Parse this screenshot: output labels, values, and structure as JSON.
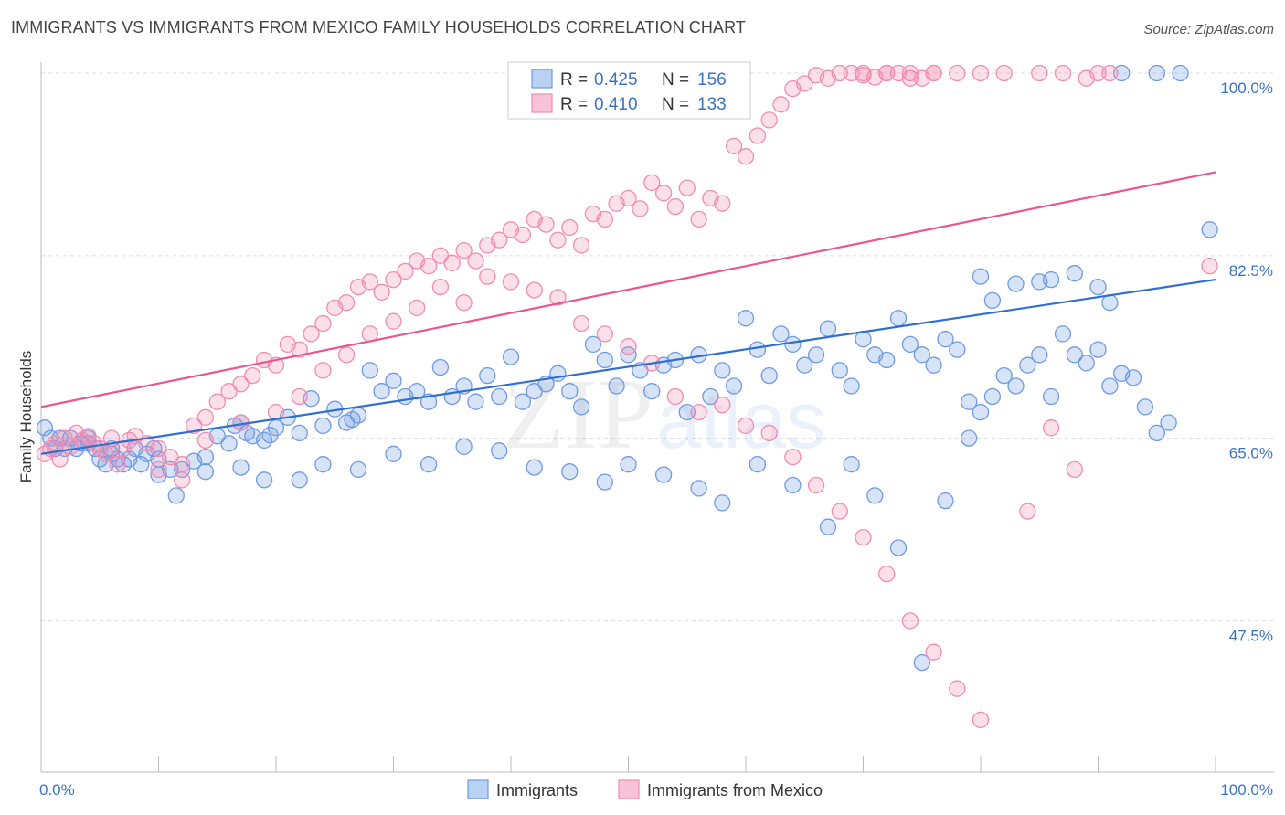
{
  "title": "IMMIGRANTS VS IMMIGRANTS FROM MEXICO FAMILY HOUSEHOLDS CORRELATION CHART",
  "source": "Source: ZipAtlas.com",
  "watermark": {
    "zip": "ZIP",
    "atlas": "atlas"
  },
  "legend": {
    "r_label": "R =",
    "n_label": "N =",
    "rows": [
      {
        "r": "0.425",
        "n": "156"
      },
      {
        "r": "0.410",
        "n": "133"
      }
    ]
  },
  "chart_data": {
    "type": "scatter",
    "xlabel": "",
    "ylabel": "Family Households",
    "xlim": [
      0,
      100
    ],
    "ylim": [
      33,
      100
    ],
    "x_tick_labels": [
      {
        "value": 0,
        "label": "0.0%"
      },
      {
        "value": 100,
        "label": "100.0%"
      }
    ],
    "y_ticks": [
      {
        "value": 47.5,
        "label": "47.5%"
      },
      {
        "value": 65.0,
        "label": "65.0%"
      },
      {
        "value": 82.5,
        "label": "82.5%"
      },
      {
        "value": 100.0,
        "label": "100.0%"
      }
    ],
    "grid": true,
    "legend_placement": "top-center",
    "series": [
      {
        "name": "Immigrants",
        "color": "#6f9be3",
        "line_color": "#2f6fd0",
        "trend": {
          "x": [
            0,
            100
          ],
          "y": [
            63.5,
            80.2
          ]
        },
        "points": [
          [
            0.3,
            66
          ],
          [
            0.8,
            65
          ],
          [
            1.2,
            64
          ],
          [
            1.6,
            65
          ],
          [
            2,
            64
          ],
          [
            2.5,
            65
          ],
          [
            3,
            64
          ],
          [
            3.4,
            64.5
          ],
          [
            4,
            65
          ],
          [
            4.6,
            64
          ],
          [
            5,
            63
          ],
          [
            5.5,
            62.5
          ],
          [
            6,
            64
          ],
          [
            6.5,
            63
          ],
          [
            7,
            62.5
          ],
          [
            7.5,
            63
          ],
          [
            8,
            64
          ],
          [
            8.5,
            62.5
          ],
          [
            9,
            63.5
          ],
          [
            9.6,
            64
          ],
          [
            10,
            63
          ],
          [
            11,
            62
          ],
          [
            12,
            62
          ],
          [
            13,
            62.8
          ],
          [
            14,
            63.2
          ],
          [
            15,
            65.2
          ],
          [
            16,
            64.5
          ],
          [
            16.5,
            66.2
          ],
          [
            17,
            66.5
          ],
          [
            17.5,
            65.5
          ],
          [
            18,
            65.2
          ],
          [
            19,
            64.8
          ],
          [
            19.5,
            65.3
          ],
          [
            20,
            66
          ],
          [
            21,
            67
          ],
          [
            22,
            65.5
          ],
          [
            23,
            68.8
          ],
          [
            24,
            66.2
          ],
          [
            25,
            67.8
          ],
          [
            26,
            66.5
          ],
          [
            26.5,
            66.8
          ],
          [
            27,
            67.2
          ],
          [
            28,
            71.5
          ],
          [
            29,
            69.5
          ],
          [
            30,
            70.5
          ],
          [
            31,
            69
          ],
          [
            32,
            69.5
          ],
          [
            33,
            68.5
          ],
          [
            34,
            71.8
          ],
          [
            35,
            69
          ],
          [
            36,
            70
          ],
          [
            37,
            68.5
          ],
          [
            38,
            71
          ],
          [
            39,
            69
          ],
          [
            40,
            72.8
          ],
          [
            41,
            68.5
          ],
          [
            42,
            69.5
          ],
          [
            43,
            70.2
          ],
          [
            44,
            71.2
          ],
          [
            45,
            69.5
          ],
          [
            46,
            68
          ],
          [
            47,
            74
          ],
          [
            48,
            72.5
          ],
          [
            49,
            70
          ],
          [
            50,
            73
          ],
          [
            51,
            71.5
          ],
          [
            52,
            69.5
          ],
          [
            53,
            72
          ],
          [
            54,
            72.5
          ],
          [
            55,
            67.5
          ],
          [
            56,
            73
          ],
          [
            57,
            69
          ],
          [
            58,
            71.5
          ],
          [
            59,
            70
          ],
          [
            60,
            76.5
          ],
          [
            61,
            73.5
          ],
          [
            62,
            71
          ],
          [
            63,
            75
          ],
          [
            64,
            74
          ],
          [
            65,
            72
          ],
          [
            66,
            73
          ],
          [
            67,
            75.5
          ],
          [
            68,
            71.5
          ],
          [
            69,
            70
          ],
          [
            70,
            74.5
          ],
          [
            71,
            73
          ],
          [
            72,
            72.5
          ],
          [
            73,
            76.5
          ],
          [
            74,
            74
          ],
          [
            75,
            73
          ],
          [
            76,
            72
          ],
          [
            77,
            74.5
          ],
          [
            78,
            73.5
          ],
          [
            79,
            68.5
          ],
          [
            80,
            67.5
          ],
          [
            81,
            69
          ],
          [
            82,
            71
          ],
          [
            83,
            70
          ],
          [
            84,
            72
          ],
          [
            85,
            73
          ],
          [
            86,
            69
          ],
          [
            87,
            75
          ],
          [
            88,
            73
          ],
          [
            89,
            72.2
          ],
          [
            90,
            73.5
          ],
          [
            91,
            70
          ],
          [
            92,
            71.2
          ],
          [
            93,
            70.8
          ],
          [
            94,
            68
          ],
          [
            95,
            65.5
          ],
          [
            96,
            66.5
          ],
          [
            4,
            64.5
          ],
          [
            6,
            63.5
          ],
          [
            10,
            61.5
          ],
          [
            11.5,
            59.5
          ],
          [
            14,
            61.8
          ],
          [
            17,
            62.2
          ],
          [
            19,
            61
          ],
          [
            22,
            61
          ],
          [
            24,
            62.5
          ],
          [
            27,
            62
          ],
          [
            30,
            63.5
          ],
          [
            33,
            62.5
          ],
          [
            36,
            64.2
          ],
          [
            39,
            63.8
          ],
          [
            42,
            62.2
          ],
          [
            45,
            61.8
          ],
          [
            48,
            60.8
          ],
          [
            50,
            62.5
          ],
          [
            53,
            61.5
          ],
          [
            56,
            60.2
          ],
          [
            58,
            58.8
          ],
          [
            61,
            62.5
          ],
          [
            64,
            60.5
          ],
          [
            67,
            56.5
          ],
          [
            69,
            62.5
          ],
          [
            71,
            59.5
          ],
          [
            73,
            54.5
          ],
          [
            75,
            43.5
          ],
          [
            77,
            59
          ],
          [
            79,
            65
          ],
          [
            80,
            80.5
          ],
          [
            81,
            78.2
          ],
          [
            83,
            79.8
          ],
          [
            85,
            80
          ],
          [
            86,
            80.2
          ],
          [
            88,
            80.8
          ],
          [
            90,
            79.5
          ],
          [
            91,
            78
          ],
          [
            92,
            100
          ],
          [
            95,
            100
          ],
          [
            97,
            100
          ],
          [
            99.5,
            85
          ]
        ]
      },
      {
        "name": "Immigrants from Mexico",
        "color": "#f28cb1",
        "line_color": "#e8578f",
        "trend": {
          "x": [
            0,
            100
          ],
          "y": [
            68,
            90.5
          ]
        },
        "points": [
          [
            0.3,
            63.5
          ],
          [
            0.8,
            64
          ],
          [
            1.2,
            64.5
          ],
          [
            1.6,
            63
          ],
          [
            2,
            65
          ],
          [
            2.5,
            64.2
          ],
          [
            3,
            65.5
          ],
          [
            3.5,
            64.8
          ],
          [
            4,
            65.2
          ],
          [
            4.5,
            64.5
          ],
          [
            5,
            64
          ],
          [
            5.5,
            63.5
          ],
          [
            6,
            65
          ],
          [
            6.5,
            62.5
          ],
          [
            7,
            64
          ],
          [
            7.5,
            64.8
          ],
          [
            8,
            65.2
          ],
          [
            9,
            64.5
          ],
          [
            10,
            64
          ],
          [
            11,
            63.2
          ],
          [
            12,
            62.5
          ],
          [
            13,
            66.2
          ],
          [
            14,
            67
          ],
          [
            15,
            68.5
          ],
          [
            16,
            69.5
          ],
          [
            17,
            70.2
          ],
          [
            18,
            71
          ],
          [
            19,
            72.5
          ],
          [
            20,
            72
          ],
          [
            21,
            74
          ],
          [
            22,
            73.5
          ],
          [
            23,
            75
          ],
          [
            24,
            76
          ],
          [
            25,
            77.5
          ],
          [
            26,
            78
          ],
          [
            27,
            79.5
          ],
          [
            28,
            80
          ],
          [
            29,
            79
          ],
          [
            30,
            80.2
          ],
          [
            31,
            81
          ],
          [
            32,
            82
          ],
          [
            33,
            81.5
          ],
          [
            34,
            82.5
          ],
          [
            35,
            81.8
          ],
          [
            36,
            83
          ],
          [
            37,
            82
          ],
          [
            38,
            83.5
          ],
          [
            39,
            84
          ],
          [
            40,
            85
          ],
          [
            41,
            84.5
          ],
          [
            42,
            86
          ],
          [
            43,
            85.5
          ],
          [
            44,
            84
          ],
          [
            45,
            85.2
          ],
          [
            46,
            83.5
          ],
          [
            47,
            86.5
          ],
          [
            48,
            86
          ],
          [
            49,
            87.5
          ],
          [
            50,
            88
          ],
          [
            51,
            87
          ],
          [
            52,
            89.5
          ],
          [
            53,
            88.5
          ],
          [
            54,
            87.2
          ],
          [
            55,
            89
          ],
          [
            56,
            86
          ],
          [
            57,
            88
          ],
          [
            58,
            87.5
          ],
          [
            59,
            93
          ],
          [
            60,
            92
          ],
          [
            61,
            94
          ],
          [
            62,
            95.5
          ],
          [
            63,
            97
          ],
          [
            64,
            98.5
          ],
          [
            65,
            99
          ],
          [
            66,
            99.8
          ],
          [
            67,
            99.5
          ],
          [
            68,
            100
          ],
          [
            69,
            100
          ],
          [
            70,
            99.8
          ],
          [
            71,
            99.6
          ],
          [
            72,
            100
          ],
          [
            73,
            100
          ],
          [
            74,
            100
          ],
          [
            75,
            99.5
          ],
          [
            76,
            100
          ],
          [
            78,
            100
          ],
          [
            80,
            100
          ],
          [
            82,
            100
          ],
          [
            85,
            100
          ],
          [
            87,
            100
          ],
          [
            89,
            99.5
          ],
          [
            90,
            100
          ],
          [
            10,
            62
          ],
          [
            12,
            61
          ],
          [
            14,
            64.8
          ],
          [
            17,
            66.5
          ],
          [
            20,
            67.5
          ],
          [
            22,
            69
          ],
          [
            24,
            71.5
          ],
          [
            26,
            73
          ],
          [
            28,
            75
          ],
          [
            30,
            76.2
          ],
          [
            32,
            77.5
          ],
          [
            34,
            79.5
          ],
          [
            36,
            78
          ],
          [
            38,
            80.5
          ],
          [
            40,
            80
          ],
          [
            42,
            79.2
          ],
          [
            44,
            78.5
          ],
          [
            46,
            76
          ],
          [
            48,
            75
          ],
          [
            50,
            73.8
          ],
          [
            52,
            72.2
          ],
          [
            54,
            69
          ],
          [
            56,
            67.5
          ],
          [
            58,
            68.2
          ],
          [
            60,
            66.2
          ],
          [
            62,
            65.5
          ],
          [
            64,
            63.2
          ],
          [
            66,
            60.5
          ],
          [
            68,
            58
          ],
          [
            70,
            55.5
          ],
          [
            72,
            52
          ],
          [
            74,
            47.5
          ],
          [
            76,
            44.5
          ],
          [
            78,
            41
          ],
          [
            80,
            38
          ],
          [
            84,
            58
          ],
          [
            86,
            66
          ],
          [
            88,
            62
          ],
          [
            99.5,
            81.5
          ],
          [
            70,
            100
          ],
          [
            72,
            100
          ],
          [
            74,
            99.5
          ],
          [
            76,
            100
          ],
          [
            91,
            100
          ]
        ]
      }
    ]
  }
}
